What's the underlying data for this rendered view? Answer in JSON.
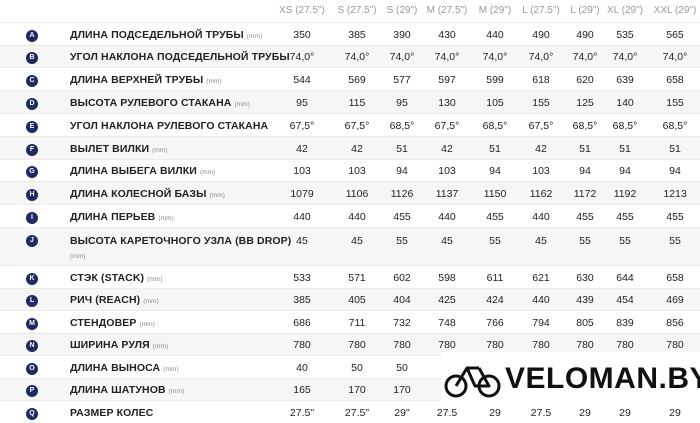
{
  "columns": [
    "XS (27.5\")",
    "S (27.5\")",
    "S (29\")",
    "M (27.5\")",
    "M (29\")",
    "L (27.5\")",
    "L (29\")",
    "XL (29\")",
    "XXL (29\")"
  ],
  "rows": [
    {
      "letter": "A",
      "label": "ДЛИНА ПОДСЕДЕЛЬНОЙ ТРУБЫ",
      "unit": "(mm)",
      "values": [
        "350",
        "385",
        "390",
        "430",
        "440",
        "490",
        "490",
        "535",
        "565"
      ]
    },
    {
      "letter": "B",
      "label": "УГОЛ НАКЛОНА ПОДСЕДЕЛЬНОЙ ТРУБЫ",
      "unit": "",
      "values": [
        "74,0°",
        "74,0°",
        "74,0°",
        "74,0°",
        "74,0°",
        "74,0°",
        "74,0°",
        "74,0°",
        "74,0°"
      ]
    },
    {
      "letter": "C",
      "label": "ДЛИНА ВЕРХНЕЙ ТРУБЫ",
      "unit": "(mm)",
      "values": [
        "544",
        "569",
        "577",
        "597",
        "599",
        "618",
        "620",
        "639",
        "658"
      ]
    },
    {
      "letter": "D",
      "label": "ВЫСОТА РУЛЕВОГО СТАКАНА",
      "unit": "(mm)",
      "values": [
        "95",
        "115",
        "95",
        "130",
        "105",
        "155",
        "125",
        "140",
        "155"
      ]
    },
    {
      "letter": "E",
      "label": "УГОЛ НАКЛОНА РУЛЕВОГО СТАКАНА",
      "unit": "",
      "values": [
        "67,5°",
        "67,5°",
        "68,5°",
        "67,5°",
        "68,5°",
        "67,5°",
        "68,5°",
        "68,5°",
        "68,5°"
      ]
    },
    {
      "letter": "F",
      "label": "ВЫЛЕТ ВИЛКИ",
      "unit": "(mm)",
      "values": [
        "42",
        "42",
        "51",
        "42",
        "51",
        "42",
        "51",
        "51",
        "51"
      ]
    },
    {
      "letter": "G",
      "label": "ДЛИНА ВЫБЕГА ВИЛКИ",
      "unit": "(mm)",
      "values": [
        "103",
        "103",
        "94",
        "103",
        "94",
        "103",
        "94",
        "94",
        "94"
      ]
    },
    {
      "letter": "H",
      "label": "ДЛИНА КОЛЕСНОЙ БАЗЫ",
      "unit": "(mm)",
      "values": [
        "1079",
        "1106",
        "1126",
        "1137",
        "1150",
        "1162",
        "1172",
        "1192",
        "1213"
      ]
    },
    {
      "letter": "I",
      "label": "ДЛИНА ПЕРЬЕВ",
      "unit": "(mm)",
      "values": [
        "440",
        "440",
        "455",
        "440",
        "455",
        "440",
        "455",
        "455",
        "455"
      ]
    },
    {
      "letter": "J",
      "label": "ВЫСОТА КАРЕТОЧНОГО УЗЛА (BB DROP)",
      "unit": "(mm)",
      "values": [
        "45",
        "45",
        "55",
        "45",
        "55",
        "45",
        "55",
        "55",
        "55"
      ]
    },
    {
      "letter": "K",
      "label": "СТЭК (STACK)",
      "unit": "(mm)",
      "values": [
        "533",
        "571",
        "602",
        "598",
        "611",
        "621",
        "630",
        "644",
        "658"
      ]
    },
    {
      "letter": "L",
      "label": "РИЧ (REACH)",
      "unit": "(mm)",
      "values": [
        "385",
        "405",
        "404",
        "425",
        "424",
        "440",
        "439",
        "454",
        "469"
      ]
    },
    {
      "letter": "M",
      "label": "СТЕНДОВЕР",
      "unit": "(mm)",
      "values": [
        "686",
        "711",
        "732",
        "748",
        "766",
        "794",
        "805",
        "839",
        "856"
      ]
    },
    {
      "letter": "N",
      "label": "ШИРИНА РУЛЯ",
      "unit": "(mm)",
      "values": [
        "780",
        "780",
        "780",
        "780",
        "780",
        "780",
        "780",
        "780",
        "780"
      ]
    },
    {
      "letter": "O",
      "label": "ДЛИНА ВЫНОСА",
      "unit": "(mm)",
      "values": [
        "40",
        "50",
        "50",
        "",
        "",
        "",
        "",
        "",
        ""
      ]
    },
    {
      "letter": "P",
      "label": "ДЛИНА ШАТУНОВ",
      "unit": "(mm)",
      "values": [
        "165",
        "170",
        "170",
        "",
        "",
        "",
        "",
        "",
        ""
      ]
    },
    {
      "letter": "Q",
      "label": "РАЗМЕР КОЛЕС",
      "unit": "",
      "values": [
        "27.5\"",
        "27.5\"",
        "29\"",
        "27.5",
        "29",
        "27.5",
        "29",
        "29",
        "29"
      ]
    }
  ],
  "logo": {
    "text": "VELOMAN.BY",
    "icon": "bicycle-icon"
  },
  "colors": {
    "badge": "#1f2a64",
    "header_text": "#9a9a9a",
    "row_alt": "#f6f6f6"
  }
}
